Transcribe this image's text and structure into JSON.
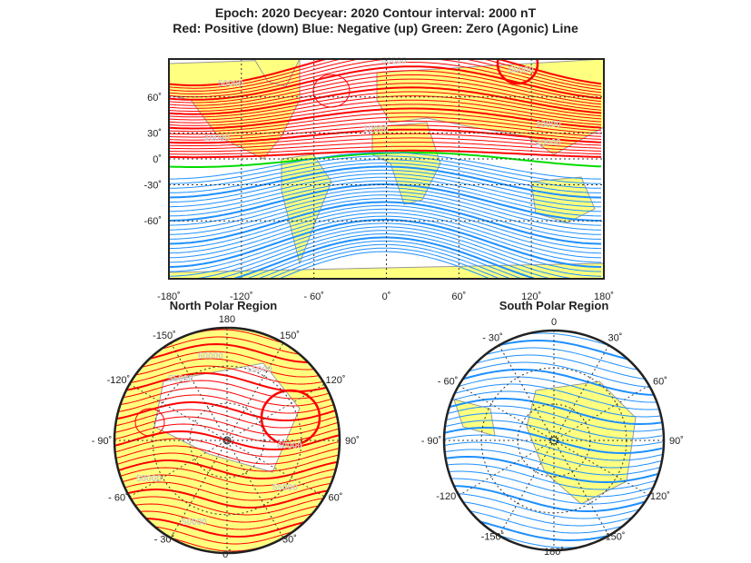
{
  "title": {
    "line1": "Epoch: 2020  Decyear: 2020  Contour interval: 2000 nT",
    "line2": "Red: Positive (down)  Blue: Negative (up)  Green: Zero (Agonic) Line"
  },
  "colors": {
    "positive": "#ff0000",
    "negative": "#1e90ff",
    "zero": "#00dd00",
    "land": "#ffff80",
    "coast": "#999999"
  },
  "main_map": {
    "lat_ticks": [
      "60",
      "30",
      "0",
      "-30",
      "-60"
    ],
    "lat_values": [
      60,
      30,
      0,
      -30,
      -60
    ],
    "lon_ticks": [
      "-180",
      "-120",
      "- 60",
      "0",
      "60",
      "120",
      "180"
    ],
    "lon_values": [
      -180,
      -120,
      -60,
      0,
      60,
      120,
      180
    ],
    "contour_labels": [
      "50000",
      "60000",
      "50000",
      "10000",
      "10000",
      "10000",
      "10000"
    ]
  },
  "north_polar": {
    "title": "North Polar Region",
    "lon_labels": [
      "180",
      "150",
      "120",
      "90",
      "60",
      "30",
      "0",
      "- 30",
      "- 60",
      "- 90",
      "-120",
      "-150"
    ],
    "contour_labels": [
      "60000",
      "55000",
      "55000",
      "60000",
      "50000",
      "55000",
      "50000"
    ]
  },
  "south_polar": {
    "title": "South Polar Region",
    "lon_labels": [
      "0",
      "30",
      "60",
      "90",
      "120",
      "150",
      "180",
      "-150",
      "-120",
      "- 90",
      "- 60",
      "- 30"
    ]
  }
}
